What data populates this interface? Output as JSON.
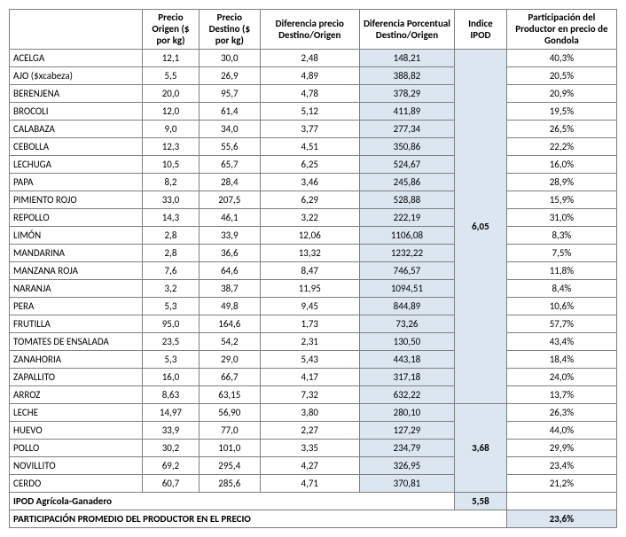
{
  "headers": {
    "c0": "",
    "c1": "Precio Origen ($ por kg)",
    "c2": "Precio Destino ($ por kg)",
    "c3": "Diferencia precio Destino/Origen",
    "c4": "Diferencia Porcentual Destino/Origen",
    "c5": "Indice IPOD",
    "c6": "Participación del Productor en precio de Gondola"
  },
  "groups": [
    {
      "ipod": "6,05",
      "rows": [
        {
          "p": "ACELGA",
          "po": "12,1",
          "pd": "30,0",
          "diff": "2,48",
          "pct": "148,21",
          "part": "40,3%"
        },
        {
          "p": "AJO  ($xcabeza)",
          "po": "5,5",
          "pd": "26,9",
          "diff": "4,89",
          "pct": "388,82",
          "part": "20,5%"
        },
        {
          "p": "BERENJENA",
          "po": "20,0",
          "pd": "95,7",
          "diff": "4,78",
          "pct": "378,29",
          "part": "20,9%"
        },
        {
          "p": "BROCOLI",
          "po": "12,0",
          "pd": "61,4",
          "diff": "5,12",
          "pct": "411,89",
          "part": "19,5%"
        },
        {
          "p": "CALABAZA",
          "po": "9,0",
          "pd": "34,0",
          "diff": "3,77",
          "pct": "277,34",
          "part": "26,5%"
        },
        {
          "p": "CEBOLLA",
          "po": "12,3",
          "pd": "55,6",
          "diff": "4,51",
          "pct": "350,86",
          "part": "22,2%"
        },
        {
          "p": "LECHUGA",
          "po": "10,5",
          "pd": "65,7",
          "diff": "6,25",
          "pct": "524,67",
          "part": "16,0%"
        },
        {
          "p": "PAPA",
          "po": "8,2",
          "pd": "28,4",
          "diff": "3,46",
          "pct": "245,86",
          "part": "28,9%"
        },
        {
          "p": "PIMIENTO ROJO",
          "po": "33,0",
          "pd": "207,5",
          "diff": "6,29",
          "pct": "528,88",
          "part": "15,9%"
        },
        {
          "p": "REPOLLO",
          "po": "14,3",
          "pd": "46,1",
          "diff": "3,22",
          "pct": "222,19",
          "part": "31,0%"
        },
        {
          "p": "LIMÓN",
          "po": "2,8",
          "pd": "33,9",
          "diff": "12,06",
          "pct": "1106,08",
          "part": "8,3%"
        },
        {
          "p": "MANDARINA",
          "po": "2,8",
          "pd": "36,6",
          "diff": "13,32",
          "pct": "1232,22",
          "part": "7,5%"
        },
        {
          "p": "MANZANA ROJA",
          "po": "7,6",
          "pd": "64,6",
          "diff": "8,47",
          "pct": "746,57",
          "part": "11,8%"
        },
        {
          "p": "NARANJA",
          "po": "3,2",
          "pd": "38,7",
          "diff": "11,95",
          "pct": "1094,51",
          "part": "8,4%"
        },
        {
          "p": "PERA",
          "po": "5,3",
          "pd": "49,8",
          "diff": "9,45",
          "pct": "844,89",
          "part": "10,6%"
        },
        {
          "p": "FRUTILLA",
          "po": "95,0",
          "pd": "164,6",
          "diff": "1,73",
          "pct": "73,26",
          "part": "57,7%"
        },
        {
          "p": "TOMATES DE ENSALADA",
          "po": "23,5",
          "pd": "54,2",
          "diff": "2,31",
          "pct": "130,50",
          "part": "43,4%"
        },
        {
          "p": "ZANAHORIA",
          "po": "5,3",
          "pd": "29,0",
          "diff": "5,43",
          "pct": "443,18",
          "part": "18,4%"
        },
        {
          "p": "ZAPALLITO",
          "po": "16,0",
          "pd": "66,7",
          "diff": "4,17",
          "pct": "317,18",
          "part": "24,0%"
        },
        {
          "p": "ARROZ",
          "po": "8,63",
          "pd": "63,15",
          "diff": "7,32",
          "pct": "632,22",
          "part": "13,7%"
        }
      ]
    },
    {
      "ipod": "3,68",
      "rows": [
        {
          "p": "LECHE",
          "po": "14,97",
          "pd": "56,90",
          "diff": "3,80",
          "pct": "280,10",
          "part": "26,3%"
        },
        {
          "p": "HUEVO",
          "po": "33,9",
          "pd": "77,0",
          "diff": "2,27",
          "pct": "127,29",
          "part": "44,0%"
        },
        {
          "p": "POLLO",
          "po": "30,2",
          "pd": "101,0",
          "diff": "3,35",
          "pct": "234,79",
          "part": "29,9%"
        },
        {
          "p": "NOVILLITO",
          "po": "69,2",
          "pd": "295,4",
          "diff": "4,27",
          "pct": "326,95",
          "part": "23,4%"
        },
        {
          "p": "CERDO",
          "po": "60,7",
          "pd": "285,6",
          "diff": "4,71",
          "pct": "370,81",
          "part": "21,2%"
        }
      ]
    }
  ],
  "summary": {
    "row1_label": "IPOD Agrícola-Ganadero",
    "row1_value": "5,58",
    "row2_label": "PARTICIPACIÓN PROMEDIO DEL PRODUCTOR EN EL PRECIO",
    "row2_value": "23,6%"
  }
}
